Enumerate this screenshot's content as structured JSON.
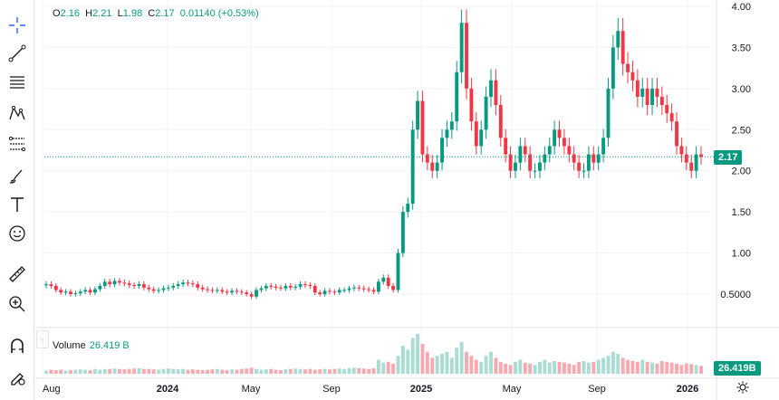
{
  "ohlc": {
    "open_label": "O",
    "open": "2.16",
    "high_label": "H",
    "high": "2.21",
    "low_label": "L",
    "low": "1.98",
    "close_label": "C",
    "close": "2.17",
    "change": "0.01140 (+0.53%)"
  },
  "volume": {
    "label": "Volume",
    "value": "26.419 B"
  },
  "price_tags": {
    "last_price": "2.17",
    "last_volume": "26.419B"
  },
  "colors": {
    "up": "#089981",
    "down": "#f23645",
    "up_vol": "#a9dcd3",
    "down_vol": "#f7a9b0"
  },
  "toolbar": {
    "icons": [
      "crosshair-icon",
      "trend-line-icon",
      "horizontal-lines-icon",
      "pattern-icon",
      "fib-icon",
      "brush-icon",
      "text-icon",
      "emoji-icon",
      "ruler-icon",
      "zoom-icon",
      "magnet-icon",
      "lock-drawing-icon"
    ]
  },
  "chart_data": {
    "type": "candlestick",
    "y_axis": {
      "ticks": [
        "4.00",
        "3.50",
        "3.00",
        "2.50",
        "2.00",
        "1.50",
        "1.00",
        "0.5000"
      ],
      "range": [
        0,
        4.0
      ]
    },
    "x_axis": {
      "ticks": [
        "Aug",
        "2024",
        "May",
        "Sep",
        "2025",
        "May",
        "Sep",
        "2026"
      ]
    },
    "last_price": 2.17,
    "last_volume": "26.419B",
    "price_path": [
      0.62,
      0.6,
      0.55,
      0.52,
      0.53,
      0.5,
      0.51,
      0.53,
      0.55,
      0.52,
      0.56,
      0.6,
      0.65,
      0.62,
      0.66,
      0.64,
      0.63,
      0.61,
      0.6,
      0.62,
      0.58,
      0.56,
      0.54,
      0.55,
      0.57,
      0.58,
      0.6,
      0.62,
      0.64,
      0.63,
      0.62,
      0.58,
      0.56,
      0.55,
      0.54,
      0.55,
      0.53,
      0.52,
      0.54,
      0.53,
      0.52,
      0.5,
      0.47,
      0.55,
      0.57,
      0.6,
      0.59,
      0.58,
      0.57,
      0.6,
      0.58,
      0.59,
      0.62,
      0.61,
      0.6,
      0.52,
      0.5,
      0.54,
      0.53,
      0.52,
      0.55,
      0.55,
      0.57,
      0.58,
      0.57,
      0.56,
      0.55,
      0.53,
      0.65,
      0.7,
      0.6,
      0.55,
      1.0,
      1.5,
      1.6,
      2.5,
      2.85,
      2.2,
      2.1,
      2.0,
      2.1,
      2.4,
      2.5,
      2.6,
      3.2,
      3.8,
      3.0,
      2.6,
      2.3,
      2.5,
      2.9,
      3.1,
      2.8,
      2.4,
      2.2,
      2.0,
      2.1,
      2.3,
      2.2,
      2.0,
      2.0,
      2.1,
      2.2,
      2.3,
      2.5,
      2.4,
      2.3,
      2.2,
      2.1,
      2.0,
      2.0,
      2.2,
      2.1,
      2.2,
      2.4,
      3.0,
      3.5,
      3.7,
      3.3,
      3.2,
      3.1,
      2.9,
      3.0,
      2.8,
      3.0,
      2.9,
      2.8,
      2.7,
      2.6,
      2.3,
      2.2,
      2.1,
      2.0,
      2.2,
      2.17
    ],
    "volume_path": [
      0.08,
      0.1,
      0.09,
      0.1,
      0.08,
      0.09,
      0.1,
      0.11,
      0.1,
      0.09,
      0.12,
      0.1,
      0.11,
      0.12,
      0.13,
      0.12,
      0.11,
      0.12,
      0.13,
      0.14,
      0.12,
      0.12,
      0.11,
      0.1,
      0.12,
      0.13,
      0.12,
      0.11,
      0.12,
      0.1,
      0.11,
      0.1,
      0.09,
      0.1,
      0.11,
      0.12,
      0.1,
      0.09,
      0.11,
      0.1,
      0.12,
      0.13,
      0.15,
      0.12,
      0.1,
      0.11,
      0.12,
      0.1,
      0.09,
      0.11,
      0.12,
      0.13,
      0.12,
      0.11,
      0.12,
      0.1,
      0.11,
      0.12,
      0.11,
      0.12,
      0.13,
      0.12,
      0.14,
      0.15,
      0.14,
      0.13,
      0.12,
      0.14,
      0.35,
      0.28,
      0.3,
      0.25,
      0.45,
      0.7,
      0.6,
      0.9,
      1.0,
      0.75,
      0.55,
      0.4,
      0.45,
      0.5,
      0.55,
      0.4,
      0.65,
      0.8,
      0.55,
      0.45,
      0.35,
      0.3,
      0.45,
      0.55,
      0.4,
      0.3,
      0.25,
      0.22,
      0.3,
      0.35,
      0.28,
      0.25,
      0.22,
      0.3,
      0.35,
      0.28,
      0.32,
      0.3,
      0.28,
      0.25,
      0.22,
      0.3,
      0.32,
      0.28,
      0.3,
      0.35,
      0.4,
      0.45,
      0.55,
      0.5,
      0.4,
      0.35,
      0.32,
      0.3,
      0.35,
      0.3,
      0.28,
      0.25,
      0.32,
      0.3,
      0.28,
      0.25,
      0.22,
      0.26,
      0.24,
      0.22,
      0.2
    ]
  }
}
